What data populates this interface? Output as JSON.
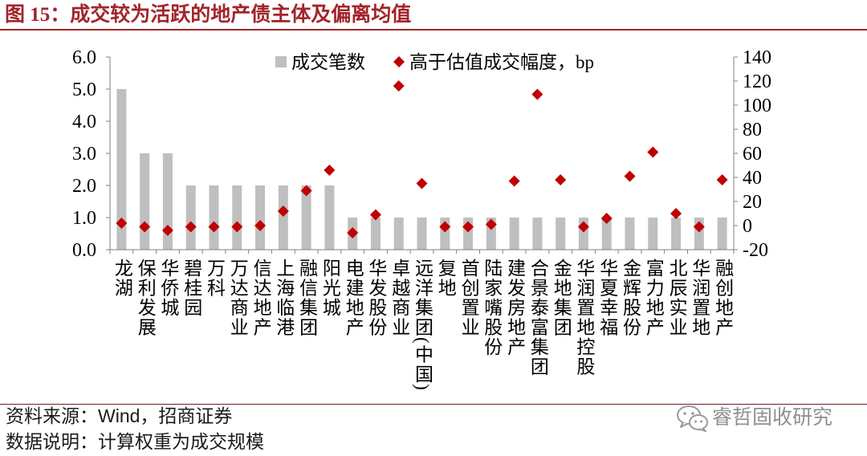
{
  "title": "图 15：成交较为活跃的地产债主体及偏离均值",
  "colors": {
    "title": "#a3242b",
    "bar": "#bfbfbf",
    "marker": "#c00000",
    "axis": "#808080",
    "watermark": "#8f8f8f"
  },
  "chart_data": {
    "type": "bar",
    "categories": [
      "龙湖",
      "保利发展",
      "华侨城",
      "碧桂园",
      "万科",
      "万达商业",
      "信达地产",
      "上海临港",
      "融信集团",
      "阳光城",
      "电建地产",
      "华发股份",
      "卓越商业",
      "远洋集团(中国)",
      "复地",
      "首创置业",
      "陆家嘴股份",
      "建发房地产",
      "合景泰富集团",
      "金地集团",
      "华润置地控股",
      "华夏幸福",
      "金辉股份",
      "富力地产",
      "北辰实业",
      "华润置地",
      "融创地产"
    ],
    "series": [
      {
        "name": "成交笔数",
        "type": "bar",
        "axis": "left",
        "values": [
          5,
          3,
          3,
          2,
          2,
          2,
          2,
          2,
          2,
          2,
          1,
          1,
          1,
          1,
          1,
          1,
          1,
          1,
          1,
          1,
          1,
          1,
          1,
          1,
          1,
          1,
          1
        ]
      },
      {
        "name": "高于估值成交幅度，bp",
        "type": "scatter",
        "marker": "diamond",
        "axis": "right",
        "values": [
          2,
          -1,
          -4,
          -1,
          -1,
          -1,
          0,
          12,
          29,
          46,
          -6,
          9,
          116,
          35,
          -1,
          -1,
          1,
          37,
          109,
          38,
          -1,
          6,
          41,
          61,
          10,
          -1,
          38
        ]
      }
    ],
    "y_left": {
      "min": 0,
      "max": 6,
      "step": 1,
      "tick_labels": [
        "0.0",
        "1.0",
        "2.0",
        "3.0",
        "4.0",
        "5.0",
        "6.0"
      ]
    },
    "y_right": {
      "min": -20,
      "max": 140,
      "step": 20,
      "tick_labels": [
        "-20",
        "0",
        "20",
        "40",
        "60",
        "80",
        "100",
        "120",
        "140"
      ]
    },
    "grid": false,
    "legend_position": "top"
  },
  "footer": {
    "source": "资料来源：Wind，招商证券",
    "note": "数据说明：计算权重为成交规模"
  },
  "watermark": {
    "icon": "wechat-icon",
    "text": "睿哲固收研究"
  }
}
